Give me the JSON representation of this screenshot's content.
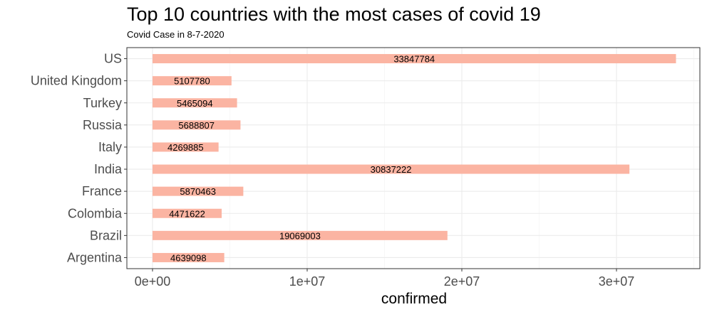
{
  "chart_data": {
    "type": "bar",
    "orientation": "horizontal",
    "title": "Top 10 countries with the most cases of covid 19",
    "subtitle": "Covid Case in 8-7-2020",
    "xlabel": "confirmed",
    "ylabel": "",
    "categories": [
      "Argentina",
      "Brazil",
      "Colombia",
      "France",
      "India",
      "Italy",
      "Russia",
      "Turkey",
      "United Kingdom",
      "US"
    ],
    "values": [
      4639098,
      19069003,
      4471622,
      5870463,
      30837222,
      4269885,
      5688807,
      5465094,
      5107780,
      33847784
    ],
    "xlim": [
      -1700000,
      35500000
    ],
    "xticks": [
      0,
      10000000,
      20000000,
      30000000
    ],
    "xtick_labels": [
      "0e+00",
      "1e+07",
      "2e+07",
      "3e+07"
    ],
    "bar_color": "#fbb4a2",
    "grid": true,
    "legend": "none"
  }
}
